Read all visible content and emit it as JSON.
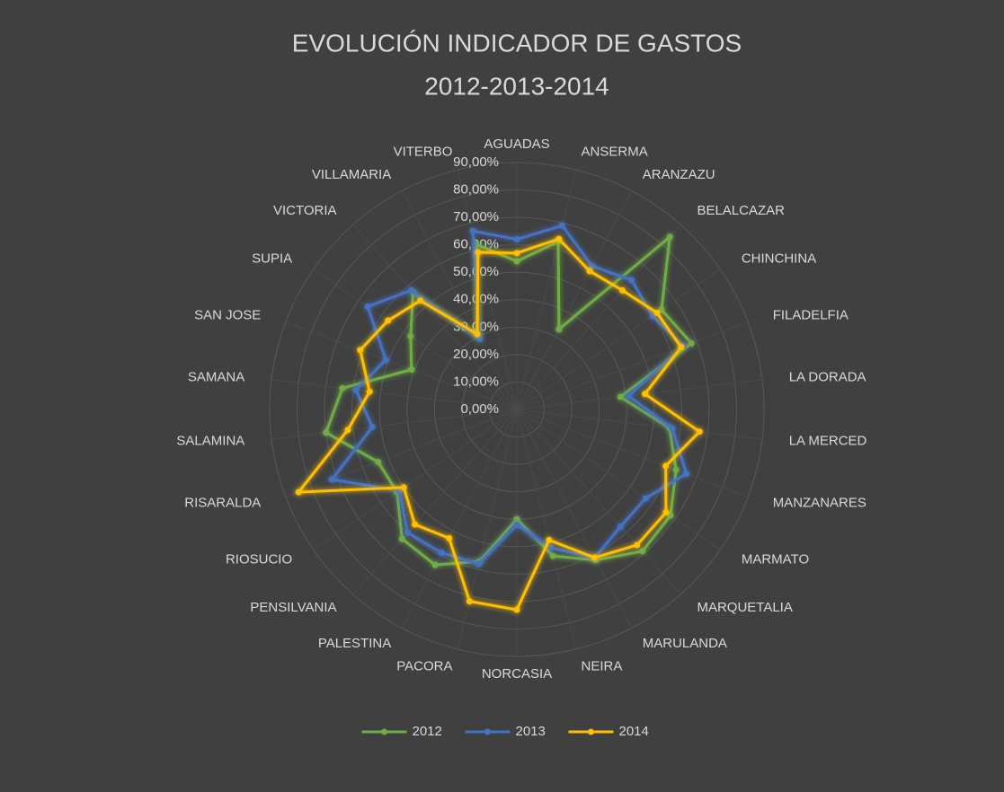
{
  "chart_data": {
    "type": "radar",
    "title": "EVOLUCIÓN INDICADOR DE GASTOS",
    "subtitle": "2012-2013-2014",
    "categories": [
      "AGUADAS",
      "ANSERMA",
      "ARANZAZU",
      "BELALCAZAR",
      "CHINCHINA",
      "FILADELFIA",
      "LA DORADA",
      "LA MERCED",
      "MANZANARES",
      "MARMATO",
      "MARQUETALIA",
      "MARULANDA",
      "NEIRA",
      "NORCASIA",
      "PACORA",
      "PALESTINA",
      "PENSILVANIA",
      "RIOSUCIO",
      "RISARALDA",
      "SALAMINA",
      "SAMANA",
      "SAN JOSE",
      "SUPIA",
      "VICTORIA",
      "VILLAMARIA",
      "VITERBO"
    ],
    "series": [
      {
        "name": "2012",
        "color": "#70ad47",
        "values": [
          54,
          63,
          33,
          84,
          64,
          68,
          38,
          56,
          62,
          68,
          69,
          62,
          55,
          40,
          57,
          64,
          63,
          53,
          54,
          70,
          64,
          41,
          47,
          57,
          30,
          62
        ]
      },
      {
        "name": "2013",
        "color": "#4472c4",
        "values": [
          62,
          69,
          59,
          63,
          60,
          65,
          41,
          57,
          66,
          57,
          57,
          61,
          52,
          42,
          58,
          59,
          60,
          52,
          72,
          53,
          59,
          51,
          66,
          58,
          29,
          67
        ]
      },
      {
        "name": "2014",
        "color": "#ffc000",
        "values": [
          57,
          64,
          57,
          58,
          62,
          64,
          47,
          67,
          58,
          66,
          66,
          61,
          49,
          73,
          72,
          53,
          56,
          50,
          85,
          62,
          54,
          61,
          57,
          53,
          31,
          59
        ]
      }
    ],
    "ylim": [
      0,
      90
    ],
    "yticks": [
      {
        "value": 0,
        "label": "0,00%"
      },
      {
        "value": 10,
        "label": "10,00%"
      },
      {
        "value": 20,
        "label": "20,00%"
      },
      {
        "value": 30,
        "label": "30,00%"
      },
      {
        "value": 40,
        "label": "40,00%"
      },
      {
        "value": 50,
        "label": "50,00%"
      },
      {
        "value": 60,
        "label": "60,00%"
      },
      {
        "value": 70,
        "label": "70,00%"
      },
      {
        "value": 80,
        "label": "80,00%"
      },
      {
        "value": 90,
        "label": "90,00%"
      }
    ],
    "grid": true,
    "legend": "bottom"
  }
}
